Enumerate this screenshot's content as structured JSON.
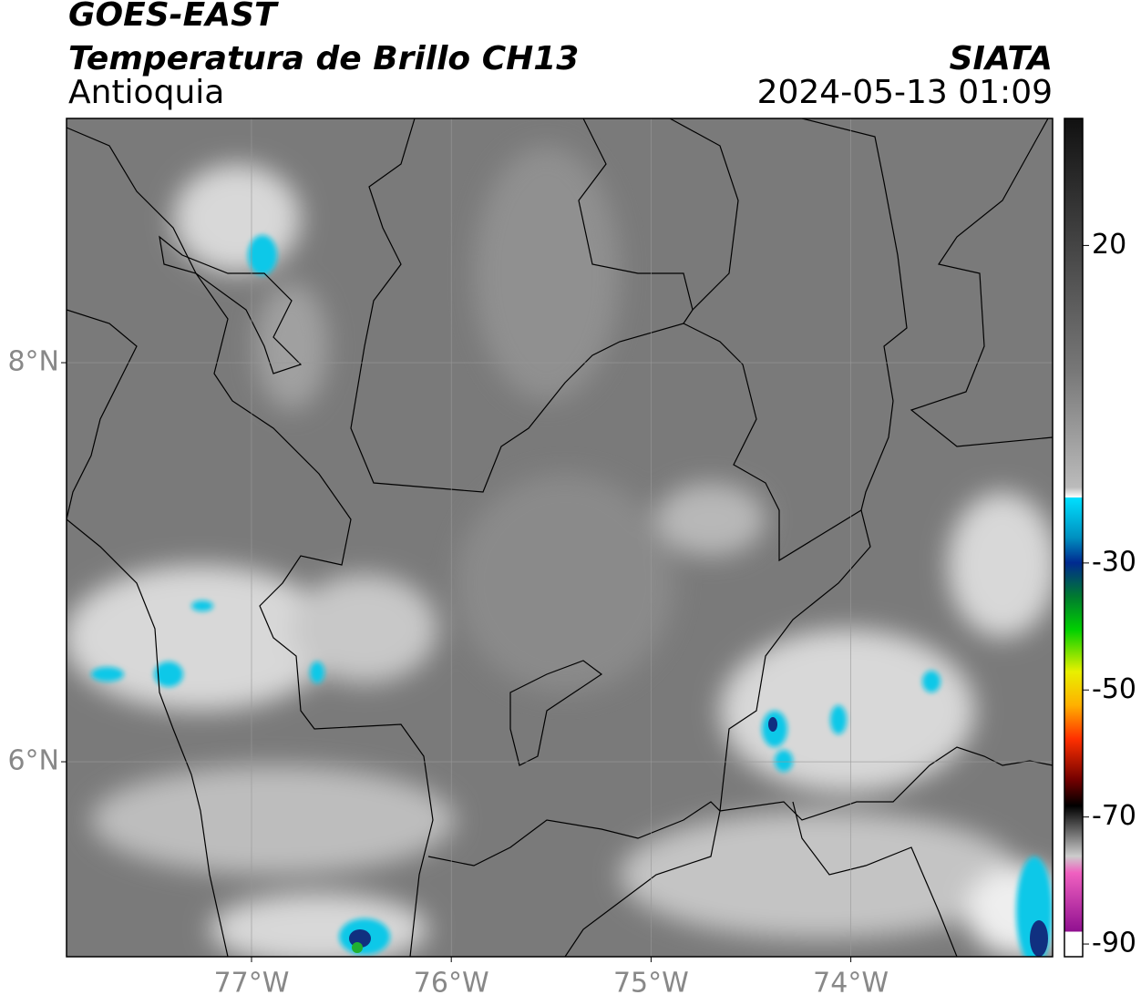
{
  "header": {
    "title": "GOES-EAST",
    "subtitle": "Temperatura de Brillo CH13",
    "region": "Antioquia",
    "source": "SIATA",
    "datetime": "2024-05-13 01:09"
  },
  "map": {
    "xlim": [
      -77.926,
      -72.99
    ],
    "ylim": [
      5.023,
      9.224
    ],
    "xticks": [
      {
        "value": -77,
        "label": "77°W"
      },
      {
        "value": -76,
        "label": "76°W"
      },
      {
        "value": -75,
        "label": "75°W"
      },
      {
        "value": -74,
        "label": "74°W"
      }
    ],
    "yticks": [
      {
        "value": 8,
        "label": "8°N"
      },
      {
        "value": 6,
        "label": "6°N"
      }
    ],
    "grid": true
  },
  "colorbar": {
    "lim": [
      -92,
      40
    ],
    "ticks": [
      20,
      -30,
      -50,
      -70,
      -90
    ]
  }
}
